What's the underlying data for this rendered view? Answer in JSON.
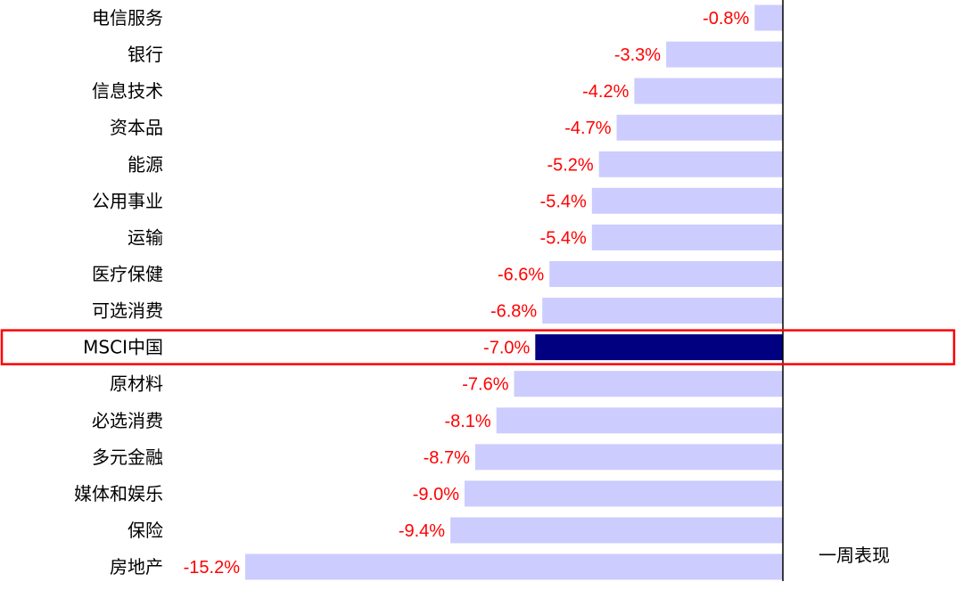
{
  "chart_data": {
    "type": "bar",
    "orientation": "horizontal",
    "legend": "一周表现",
    "legend_position": "bottom-right",
    "highlight_category": "MSCI中国",
    "colors": {
      "bar": "#ccccff",
      "highlight_bar": "#000080",
      "value_label": "#ff0000",
      "highlight_box": "#ff0000",
      "axis": "#000000"
    },
    "xlim": [
      -15.2,
      0
    ],
    "categories": [
      "电信服务",
      "银行",
      "信息技术",
      "资本品",
      "能源",
      "公用事业",
      "运输",
      "医疗保健",
      "可选消费",
      "MSCI中国",
      "原材料",
      "必选消费",
      "多元金融",
      "媒体和娱乐",
      "保险",
      "房地产"
    ],
    "values": [
      -0.8,
      -3.3,
      -4.2,
      -4.7,
      -5.2,
      -5.4,
      -5.4,
      -6.6,
      -6.8,
      -7.0,
      -7.6,
      -8.1,
      -8.7,
      -9.0,
      -9.4,
      -15.2
    ],
    "labels": [
      "-0.8%",
      "-3.3%",
      "-4.2%",
      "-4.7%",
      "-5.2%",
      "-5.4%",
      "-5.4%",
      "-6.6%",
      "-6.8%",
      "-7.0%",
      "-7.6%",
      "-8.1%",
      "-8.7%",
      "-9.0%",
      "-9.4%",
      "-15.2%"
    ]
  }
}
